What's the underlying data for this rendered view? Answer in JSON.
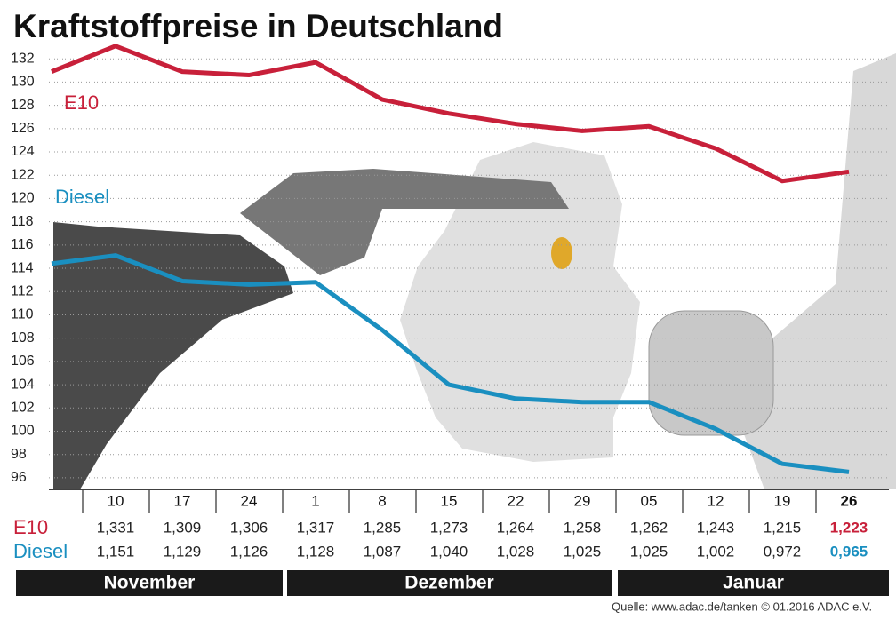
{
  "chart_data": {
    "type": "line",
    "title": "Kraftstoffpreise in Deutschland",
    "categories": [
      null,
      "10",
      "17",
      "24",
      "1",
      "8",
      "15",
      "22",
      "29",
      "05",
      "12",
      "19",
      "26"
    ],
    "months": [
      "November",
      "Dezember",
      "Januar"
    ],
    "series": [
      {
        "name": "E10",
        "color": "#c8203a",
        "values": [
          130.9,
          133.1,
          130.9,
          130.6,
          131.7,
          128.5,
          127.3,
          126.4,
          125.8,
          126.2,
          124.3,
          121.5,
          122.3
        ],
        "value_labels": [
          null,
          "1,331",
          "1,309",
          "1,306",
          "1,317",
          "1,285",
          "1,273",
          "1,264",
          "1,258",
          "1,262",
          "1,243",
          "1,215",
          "1,223"
        ]
      },
      {
        "name": "Diesel",
        "color": "#1a8fc0",
        "values": [
          114.4,
          115.1,
          112.9,
          112.6,
          112.8,
          108.7,
          104.0,
          102.8,
          102.5,
          102.5,
          100.2,
          97.2,
          96.5
        ],
        "value_labels": [
          null,
          "1,151",
          "1,129",
          "1,126",
          "1,128",
          "1,087",
          "1,040",
          "1,028",
          "1,025",
          "1,025",
          "1,002",
          "0,972",
          "0,965"
        ]
      }
    ],
    "ylim": [
      95,
      134
    ],
    "yticks": [
      96,
      98,
      100,
      102,
      104,
      106,
      108,
      110,
      112,
      114,
      116,
      118,
      120,
      122,
      124,
      126,
      128,
      130,
      132
    ],
    "grid": true,
    "source": "Quelle: www.adac.de/tanken  © 01.2016  ADAC e.V."
  }
}
